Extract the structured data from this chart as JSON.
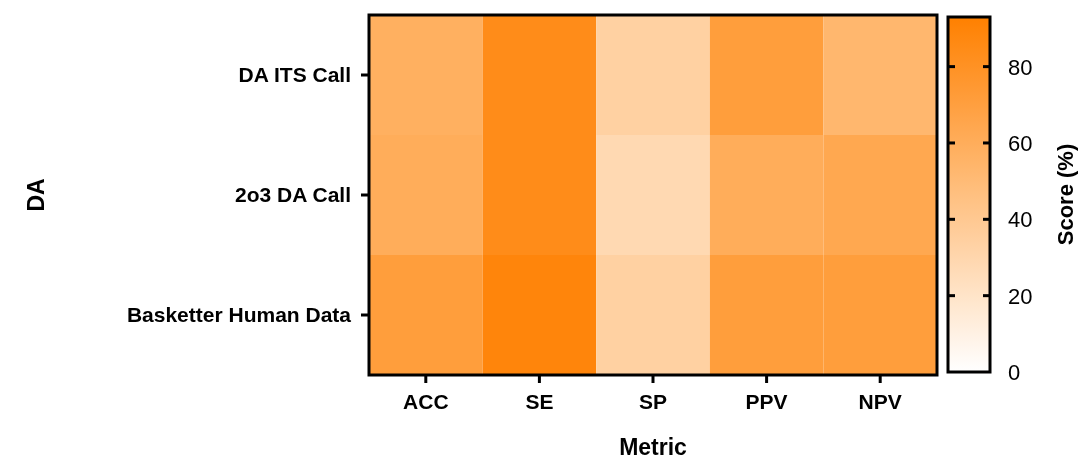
{
  "chart_data": {
    "type": "heatmap",
    "xlabel": "Metric",
    "ylabel": "DA",
    "clabel": "Score (%)",
    "categories": [
      "ACC",
      "SE",
      "SP",
      "PPV",
      "NPV"
    ],
    "y_categories": [
      "DA ITS Call",
      "2o3 DA Call",
      "Basketter Human Data"
    ],
    "cells": [
      [
        58,
        84,
        34,
        71,
        53
      ],
      [
        60,
        84,
        28,
        60,
        64
      ],
      [
        71,
        89,
        34,
        71,
        71
      ]
    ],
    "colors": [
      "#ffffff",
      "#ff8000"
    ],
    "clim": [
      0,
      93
    ],
    "cticks": [
      0,
      20,
      40,
      60,
      80
    ]
  }
}
